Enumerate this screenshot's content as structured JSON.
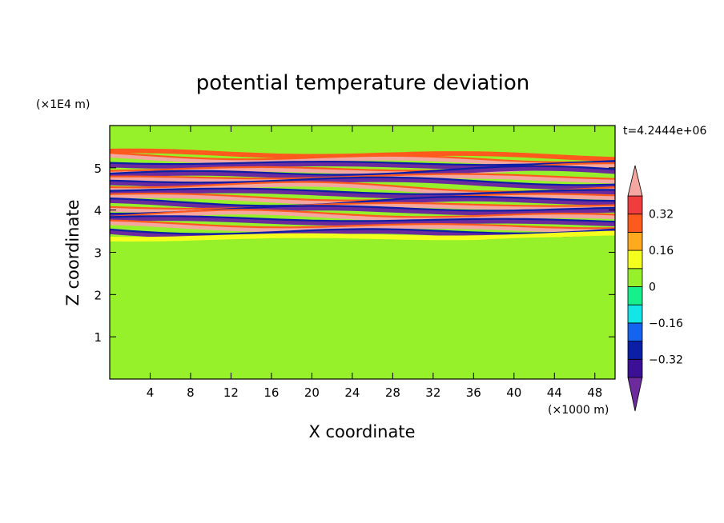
{
  "chart_data": {
    "type": "heatmap",
    "title": "potential temperature deviation",
    "xlabel": "X coordinate",
    "ylabel": "Z coordinate",
    "x_unit": "(×1000 m)",
    "y_unit": "(×1E4 m)",
    "time_label": "t=4.2444e+06",
    "xlim": [
      0,
      50
    ],
    "ylim": [
      0,
      6
    ],
    "xticks": [
      4,
      8,
      12,
      16,
      20,
      24,
      28,
      32,
      36,
      40,
      44,
      48
    ],
    "yticks": [
      1,
      2,
      3,
      4,
      5
    ],
    "colorbar": {
      "levels": [
        -0.4,
        -0.32,
        -0.24,
        -0.16,
        -0.08,
        0,
        0.08,
        0.16,
        0.24,
        0.32,
        0.4
      ],
      "tick_labels": [
        "0.32",
        "0.16",
        "0",
        "−0.16",
        "−0.32"
      ],
      "tick_values": [
        0.32,
        0.16,
        0,
        -0.16,
        -0.32
      ],
      "colors": [
        "#6c2a9c",
        "#3b0f96",
        "#0a1fa6",
        "#1464f0",
        "#12e6e6",
        "#16f08c",
        "#96f02a",
        "#f5ff1e",
        "#ffaa1e",
        "#ff5a1e",
        "#f03c3c",
        "#f4a6a0"
      ],
      "extend": "both"
    },
    "bands": [
      {
        "z": 5.45,
        "value": 0.0
      },
      {
        "z": 5.3,
        "value": 0.3
      },
      {
        "z": 5.2,
        "value": 0.42
      },
      {
        "z": 5.08,
        "value": -0.42
      },
      {
        "z": 4.95,
        "value": 0.42
      },
      {
        "z": 4.85,
        "value": -0.42
      },
      {
        "z": 4.72,
        "value": 0.42
      },
      {
        "z": 4.62,
        "value": -0.42
      },
      {
        "z": 4.5,
        "value": 0.42
      },
      {
        "z": 4.4,
        "value": -0.42
      },
      {
        "z": 4.28,
        "value": 0.42
      },
      {
        "z": 4.18,
        "value": -0.42
      },
      {
        "z": 4.05,
        "value": 0.42
      },
      {
        "z": 3.95,
        "value": -0.42
      },
      {
        "z": 3.82,
        "value": 0.42
      },
      {
        "z": 3.72,
        "value": -0.42
      },
      {
        "z": 3.6,
        "value": 0.42
      },
      {
        "z": 3.48,
        "value": -0.42
      },
      {
        "z": 3.38,
        "value": 0.1
      },
      {
        "z": 3.2,
        "value": 0.04
      }
    ]
  }
}
